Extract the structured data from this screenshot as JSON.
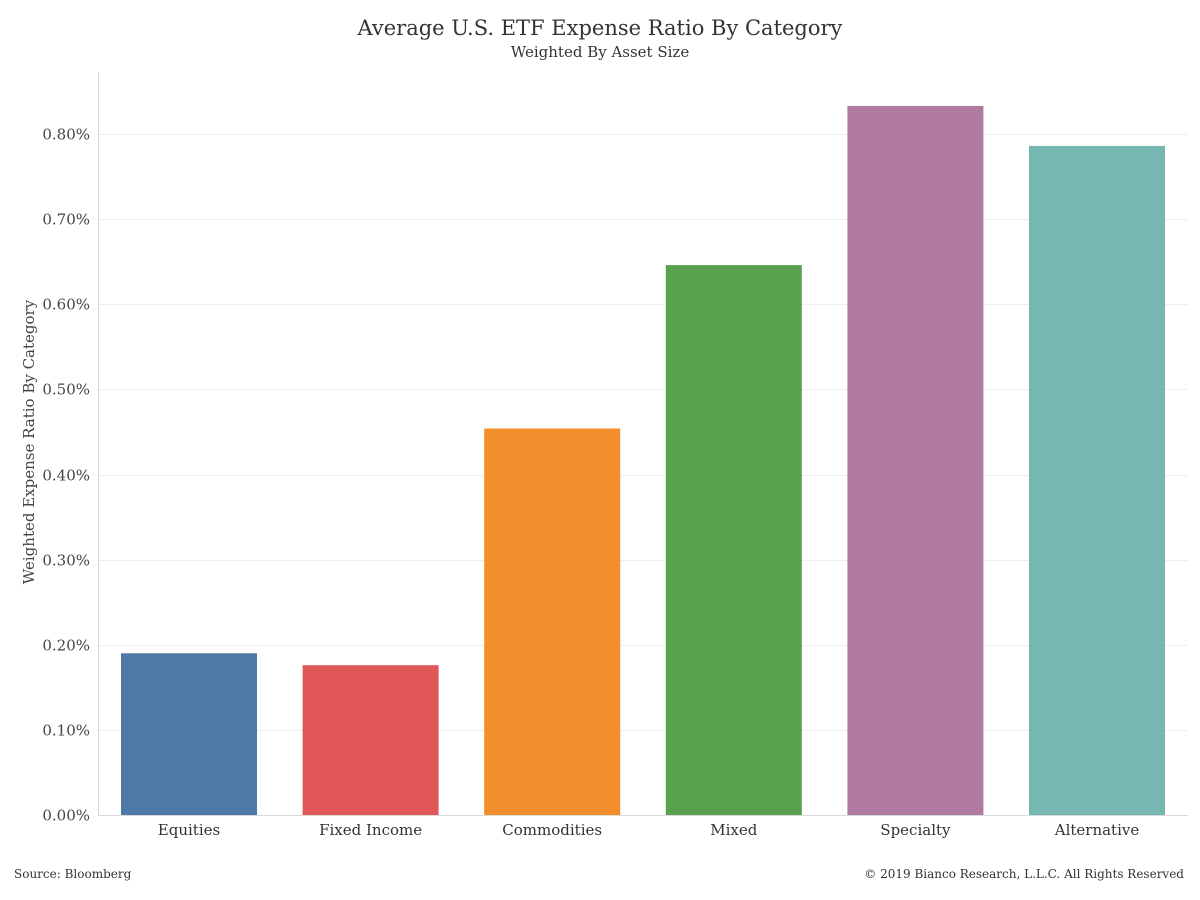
{
  "chart_data": {
    "type": "bar",
    "title": "Average U.S. ETF Expense Ratio By Category",
    "subtitle": "Weighted By Asset Size",
    "xlabel": "",
    "ylabel": "Weighted Expense Ratio By Category",
    "categories": [
      "Equities",
      "Fixed Income",
      "Commodities",
      "Mixed",
      "Specialty",
      "Alternative"
    ],
    "values": [
      0.19,
      0.176,
      0.454,
      0.646,
      0.833,
      0.786
    ],
    "colors": [
      "#4e79a7",
      "#e15759",
      "#f28e2b",
      "#59a14f",
      "#b07aa1",
      "#76b7b2"
    ],
    "ylim": [
      0,
      0.8
    ],
    "yticks": [
      0.0,
      0.1,
      0.2,
      0.3,
      0.4,
      0.5,
      0.6,
      0.7,
      0.8
    ],
    "ytick_labels": [
      "0.00%",
      "0.10%",
      "0.20%",
      "0.30%",
      "0.40%",
      "0.50%",
      "0.60%",
      "0.70%",
      "0.80%"
    ],
    "grid": true,
    "grid_color": "#eeeeee",
    "axis_color": "#d9d9d9"
  },
  "footer": {
    "source": "Source: Bloomberg",
    "copyright": "© 2019 Bianco Research, L.L.C. All Rights Reserved"
  }
}
